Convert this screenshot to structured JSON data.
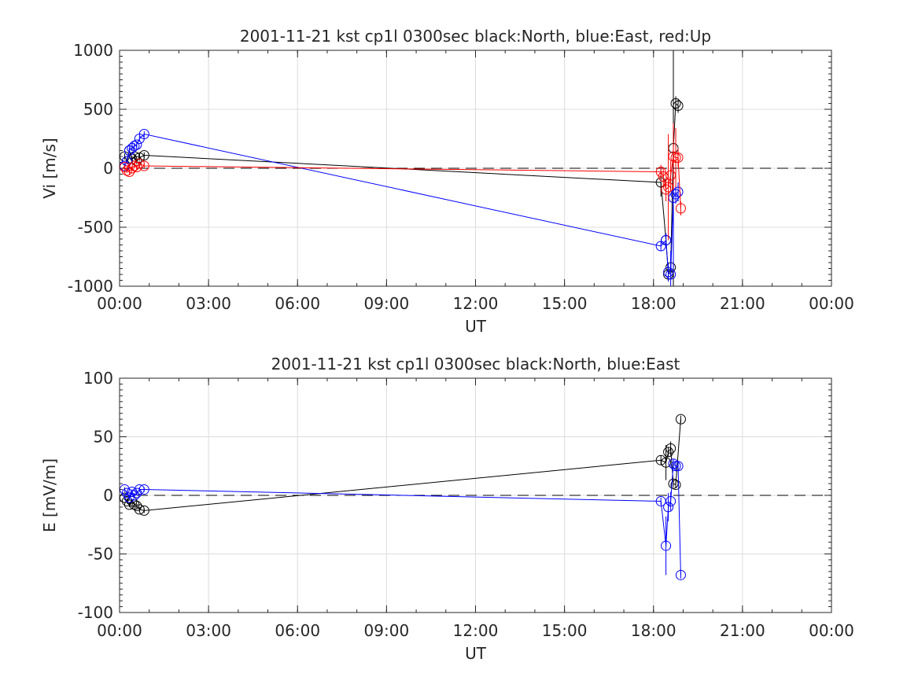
{
  "chart_data": [
    {
      "type": "line",
      "title": "2001-11-21 kst cp1l 0300sec black:North, blue:East, red:Up",
      "xlabel": "UT",
      "ylabel": "Vi [m/s]",
      "xlim": [
        0,
        24
      ],
      "ylim": [
        -1000,
        1000
      ],
      "xtick_labels": [
        "00:00",
        "03:00",
        "06:00",
        "09:00",
        "12:00",
        "15:00",
        "18:00",
        "21:00",
        "00:00"
      ],
      "ytick_values": [
        -1000,
        -500,
        0,
        500,
        1000
      ],
      "ytick_labels": [
        "-1000",
        "-500",
        "0",
        "500",
        "1000"
      ],
      "grid": true,
      "zero_line": "dashed",
      "series": [
        {
          "color": "#000000",
          "x": [
            0.17,
            0.25,
            0.33,
            0.42,
            0.5,
            0.58,
            0.67,
            0.83,
            18.25,
            18.42,
            18.5,
            18.58,
            18.67,
            18.75,
            18.83
          ],
          "y": [
            100,
            60,
            150,
            80,
            100,
            60,
            90,
            110,
            -120,
            -610,
            -900,
            -840,
            170,
            550,
            530
          ],
          "err": [
            25,
            25,
            25,
            25,
            25,
            25,
            25,
            25,
            120,
            60,
            60,
            80,
            1200,
            60,
            60
          ]
        },
        {
          "color": "#0000ff",
          "x": [
            0.17,
            0.25,
            0.33,
            0.42,
            0.5,
            0.58,
            0.67,
            0.83,
            18.25,
            18.42,
            18.5,
            18.58,
            18.67,
            18.75,
            18.83
          ],
          "y": [
            20,
            60,
            150,
            170,
            190,
            200,
            250,
            290,
            -660,
            -610,
            -880,
            -900,
            -250,
            -220,
            -200
          ],
          "err": [
            25,
            25,
            25,
            25,
            25,
            25,
            25,
            25,
            40,
            60,
            80,
            200,
            600,
            80,
            80
          ]
        },
        {
          "color": "#ff0000",
          "x": [
            0.17,
            0.25,
            0.33,
            0.42,
            0.5,
            0.58,
            0.67,
            0.83,
            18.25,
            18.33,
            18.42,
            18.5,
            18.58,
            18.67,
            18.75,
            18.83,
            18.92
          ],
          "y": [
            10,
            -20,
            -30,
            0,
            20,
            10,
            40,
            20,
            -30,
            -70,
            -180,
            -160,
            -60,
            100,
            90,
            90,
            -340
          ],
          "err": [
            20,
            20,
            20,
            20,
            20,
            20,
            20,
            20,
            60,
            80,
            100,
            450,
            120,
            280,
            250,
            80,
            60
          ]
        }
      ]
    },
    {
      "type": "line",
      "title": "2001-11-21 kst cp1l 0300sec black:North, blue:East",
      "xlabel": "UT",
      "ylabel": "E [mV/m]",
      "xlim": [
        0,
        24
      ],
      "ylim": [
        -100,
        100
      ],
      "xtick_labels": [
        "00:00",
        "03:00",
        "06:00",
        "09:00",
        "12:00",
        "15:00",
        "18:00",
        "21:00",
        "00:00"
      ],
      "ytick_values": [
        -100,
        -50,
        0,
        50,
        100
      ],
      "ytick_labels": [
        "-100",
        "-50",
        "0",
        "50",
        "100"
      ],
      "grid": true,
      "zero_line": "dashed",
      "series": [
        {
          "color": "#000000",
          "x": [
            0.17,
            0.25,
            0.33,
            0.42,
            0.5,
            0.58,
            0.67,
            0.83,
            18.25,
            18.42,
            18.5,
            18.58,
            18.67,
            18.75,
            18.92
          ],
          "y": [
            -2,
            -5,
            -8,
            -5,
            -8,
            -9,
            -12,
            -13,
            30,
            28,
            37,
            40,
            10,
            9,
            65
          ],
          "err": [
            2,
            2,
            2,
            2,
            2,
            2,
            2,
            2,
            4,
            15,
            4,
            6,
            3,
            3,
            3
          ]
        },
        {
          "color": "#0000ff",
          "x": [
            0.17,
            0.25,
            0.33,
            0.42,
            0.5,
            0.58,
            0.67,
            0.83,
            18.25,
            18.42,
            18.5,
            18.58,
            18.67,
            18.75,
            18.83,
            18.92
          ],
          "y": [
            5,
            2,
            -2,
            3,
            0,
            2,
            5,
            5,
            -5,
            -43,
            -10,
            -5,
            27,
            25,
            25,
            -68
          ],
          "err": [
            2,
            2,
            2,
            2,
            2,
            2,
            2,
            2,
            3,
            25,
            12,
            8,
            4,
            4,
            4,
            3
          ]
        }
      ]
    }
  ]
}
